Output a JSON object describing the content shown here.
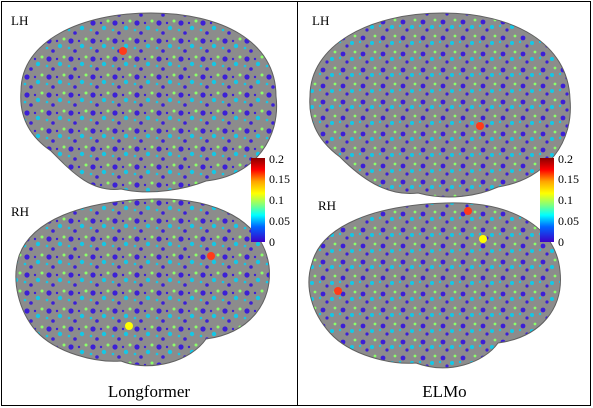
{
  "panels": [
    {
      "caption": "Longformer",
      "top_hemisphere": "LH",
      "bottom_hemisphere": "RH"
    },
    {
      "caption": "ELMo",
      "top_hemisphere": "LH",
      "bottom_hemisphere": "RH"
    }
  ],
  "colorbar": {
    "ticks": [
      "0.2",
      "0.15",
      "0.1",
      "0.05",
      "0"
    ],
    "colors": [
      "#8b0000",
      "#ff0000",
      "#ffa500",
      "#ffff00",
      "#7fff7f",
      "#00ffff",
      "#0064ff",
      "#3c00c8"
    ]
  },
  "surface_colors": {
    "cortex": "#8c8c8c",
    "low": "#3c1fd6",
    "mid": "#14c8e6",
    "high": "#8bff6a",
    "peak": "#ff3b1a"
  }
}
